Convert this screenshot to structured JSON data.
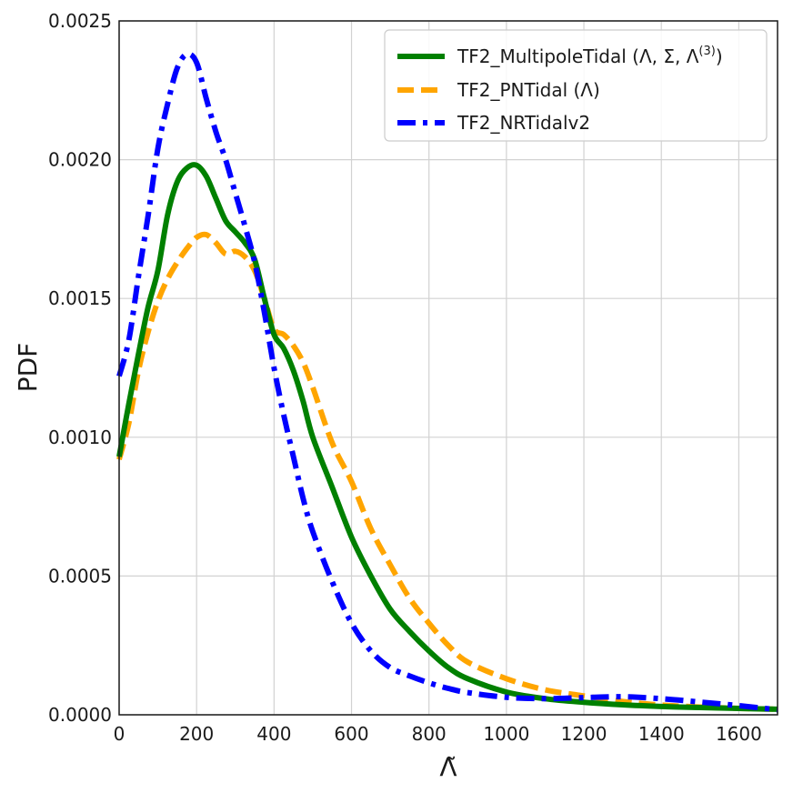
{
  "chart_data": {
    "type": "line",
    "xlabel": "Λ̃",
    "ylabel": "PDF",
    "xlim": [
      0,
      1700
    ],
    "ylim": [
      0,
      0.0025
    ],
    "x_ticks": [
      "0",
      "200",
      "400",
      "600",
      "800",
      "1000",
      "1200",
      "1400",
      "1600"
    ],
    "y_ticks": [
      "0.0000",
      "0.0005",
      "0.0010",
      "0.0015",
      "0.0020",
      "0.0025"
    ],
    "grid": true,
    "legend_position": "top-right",
    "series": [
      {
        "name": "TF2_MultipoleTidal (Λ, Σ, Λ",
        "name_sup": "(3)",
        "name_end": ")",
        "color": "#008000",
        "style": "solid",
        "x": [
          0,
          25,
          50,
          75,
          100,
          125,
          150,
          175,
          200,
          225,
          250,
          275,
          300,
          325,
          350,
          375,
          400,
          425,
          450,
          475,
          500,
          550,
          600,
          650,
          700,
          750,
          800,
          850,
          900,
          1000,
          1100,
          1200,
          1300,
          1400,
          1500,
          1600,
          1700
        ],
        "y": [
          0.00093,
          0.00112,
          0.0013,
          0.00147,
          0.0016,
          0.0018,
          0.00192,
          0.00197,
          0.00198,
          0.00194,
          0.00186,
          0.00178,
          0.00174,
          0.0017,
          0.00164,
          0.0015,
          0.00137,
          0.00132,
          0.00124,
          0.00113,
          0.001,
          0.00082,
          0.00064,
          0.0005,
          0.00038,
          0.0003,
          0.00023,
          0.00017,
          0.00013,
          8.2e-05,
          5.8e-05,
          4.5e-05,
          3.6e-05,
          3e-05,
          2.6e-05,
          2.3e-05,
          2e-05
        ]
      },
      {
        "name": "TF2_PNTidal (Λ)",
        "color": "#FFA500",
        "style": "dashed",
        "x": [
          0,
          25,
          50,
          75,
          100,
          125,
          150,
          175,
          200,
          225,
          250,
          275,
          300,
          325,
          350,
          375,
          400,
          425,
          450,
          475,
          500,
          550,
          600,
          650,
          700,
          750,
          800,
          850,
          900,
          1000,
          1100,
          1200,
          1300,
          1400,
          1500,
          1600,
          1700
        ],
        "y": [
          0.00092,
          0.00105,
          0.00124,
          0.00138,
          0.00149,
          0.00157,
          0.00163,
          0.00168,
          0.00172,
          0.00173,
          0.0017,
          0.00166,
          0.00167,
          0.00165,
          0.0016,
          0.0015,
          0.00139,
          0.00137,
          0.00133,
          0.00127,
          0.00118,
          0.00098,
          0.00084,
          0.00067,
          0.00054,
          0.00042,
          0.00033,
          0.00025,
          0.00019,
          0.00013,
          9e-05,
          6.8e-05,
          4.8e-05,
          3.5e-05,
          2.8e-05,
          2.3e-05,
          2e-05
        ]
      },
      {
        "name": "TF2_NRTidalv2",
        "color": "#0000FF",
        "style": "dashdot",
        "x": [
          0,
          25,
          50,
          75,
          100,
          125,
          150,
          175,
          200,
          225,
          250,
          275,
          300,
          325,
          350,
          375,
          400,
          425,
          450,
          475,
          500,
          550,
          600,
          650,
          700,
          750,
          800,
          850,
          900,
          1000,
          1100,
          1200,
          1300,
          1400,
          1500,
          1600,
          1700
        ],
        "y": [
          0.00122,
          0.00135,
          0.00158,
          0.0018,
          0.00204,
          0.0022,
          0.00233,
          0.00238,
          0.00235,
          0.00222,
          0.0021,
          0.002,
          0.00188,
          0.00176,
          0.00163,
          0.00145,
          0.00125,
          0.00108,
          0.00093,
          0.00078,
          0.00066,
          0.00048,
          0.00033,
          0.00023,
          0.00017,
          0.00014,
          0.000115,
          9.5e-05,
          8e-05,
          6.3e-05,
          5.8e-05,
          6.2e-05,
          6.5e-05,
          5.8e-05,
          4.6e-05,
          3.3e-05,
          1.8e-05
        ]
      }
    ]
  }
}
